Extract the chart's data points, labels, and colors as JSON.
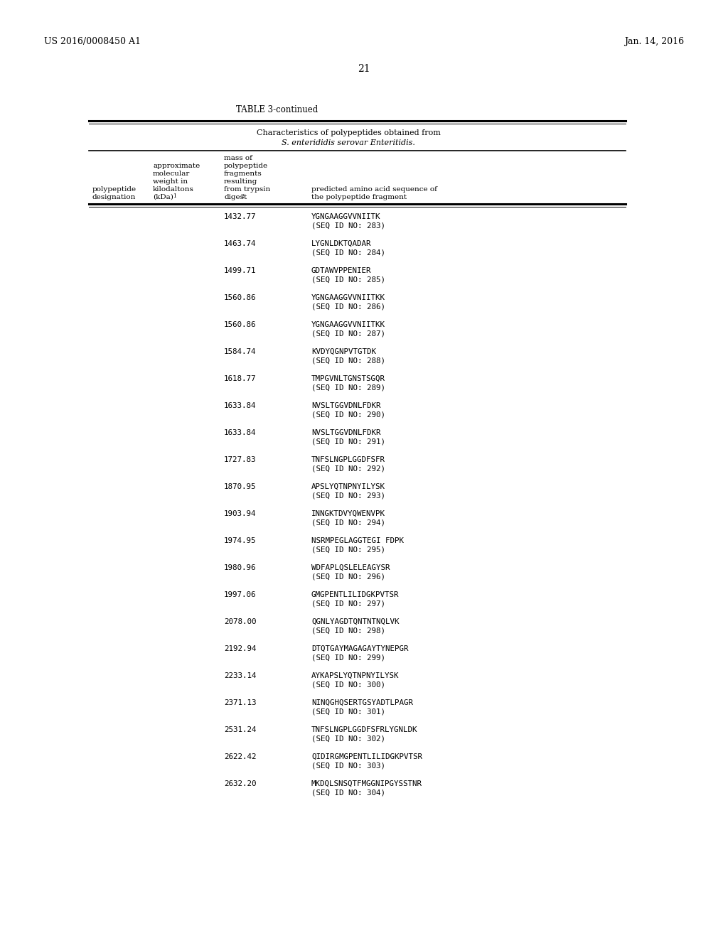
{
  "patent_left": "US 2016/0008450 A1",
  "patent_right": "Jan. 14, 2016",
  "page_number": "21",
  "table_title": "TABLE 3-continued",
  "table_subtitle1": "Characteristics of polypeptides obtained from",
  "table_subtitle2": "S. enterididis serovar Enteritidis.",
  "rows": [
    {
      "mass": "1432.77",
      "seq": "YGNGAAGGVVNIITK",
      "seq_id": "(SEQ ID NO: 283)"
    },
    {
      "mass": "1463.74",
      "seq": "LYGNLDKTQADAR",
      "seq_id": "(SEQ ID NO: 284)"
    },
    {
      "mass": "1499.71",
      "seq": "GDTAWVPPENIER",
      "seq_id": "(SEQ ID NO: 285)"
    },
    {
      "mass": "1560.86",
      "seq": "YGNGAAGGVVNIITKK",
      "seq_id": "(SEQ ID NO: 286)"
    },
    {
      "mass": "1560.86",
      "seq": "YGNGAAGGVVNIITKK",
      "seq_id": "(SEQ ID NO: 287)"
    },
    {
      "mass": "1584.74",
      "seq": "KVDYQGNPVTGTDK",
      "seq_id": "(SEQ ID NO: 288)"
    },
    {
      "mass": "1618.77",
      "seq": "TMPGVNLTGNSTSGQR",
      "seq_id": "(SEQ ID NO: 289)"
    },
    {
      "mass": "1633.84",
      "seq": "NVSLTGGVDNLFDKR",
      "seq_id": "(SEQ ID NO: 290)"
    },
    {
      "mass": "1633.84",
      "seq": "NVSLTGGVDNLFDKR",
      "seq_id": "(SEQ ID NO: 291)"
    },
    {
      "mass": "1727.83",
      "seq": "TNFSLNGPLGGDFSFR",
      "seq_id": "(SEQ ID NO: 292)"
    },
    {
      "mass": "1870.95",
      "seq": "APSLYQTNPNYILYSK",
      "seq_id": "(SEQ ID NO: 293)"
    },
    {
      "mass": "1903.94",
      "seq": "INNGKTDVYQWENVPK",
      "seq_id": "(SEQ ID NO: 294)"
    },
    {
      "mass": "1974.95",
      "seq": "NSRMPEGLAGGTEGI FDPK",
      "seq_id": "(SEQ ID NO: 295)"
    },
    {
      "mass": "1980.96",
      "seq": "WDFAPLQSLELEAGYSR",
      "seq_id": "(SEQ ID NO: 296)"
    },
    {
      "mass": "1997.06",
      "seq": "GMGPENTLILIDGKPVTSR",
      "seq_id": "(SEQ ID NO: 297)"
    },
    {
      "mass": "2078.00",
      "seq": "QGNLYAGDTQNTNTNQLVK",
      "seq_id": "(SEQ ID NO: 298)"
    },
    {
      "mass": "2192.94",
      "seq": "DTQTGAYMAGAGAYTYNEPGR",
      "seq_id": "(SEQ ID NO: 299)"
    },
    {
      "mass": "2233.14",
      "seq": "AYKAPSLYQTNPNYILYSK",
      "seq_id": "(SEQ ID NO: 300)"
    },
    {
      "mass": "2371.13",
      "seq": "NINQGHQSERTGSYADTLPAGR",
      "seq_id": "(SEQ ID NO: 301)"
    },
    {
      "mass": "2531.24",
      "seq": "TNFSLNGPLGGDFSFRLYGNLDK",
      "seq_id": "(SEQ ID NO: 302)"
    },
    {
      "mass": "2622.42",
      "seq": "QIDIRGMGPENTLILIDGKPVTSR",
      "seq_id": "(SEQ ID NO: 303)"
    },
    {
      "mass": "2632.20",
      "seq": "MKDQLSNSQTFMGGNIPGYSSTNR",
      "seq_id": "(SEQ ID NO: 304)"
    }
  ],
  "background_color": "#ffffff",
  "text_color": "#000000"
}
